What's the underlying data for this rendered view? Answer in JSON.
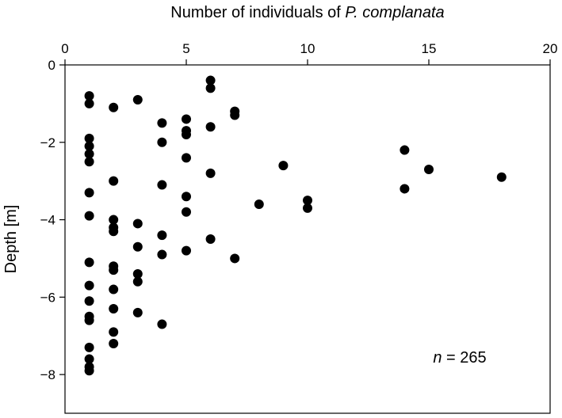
{
  "chart_data": {
    "type": "scatter",
    "title": "",
    "xlabel": {
      "prefix": "Number of individuals of ",
      "species": "P. complanata"
    },
    "ylabel": "Depth [m]",
    "xlim": [
      0,
      20
    ],
    "ylim": [
      -9,
      0
    ],
    "x_ticks": [
      0,
      5,
      10,
      15,
      20
    ],
    "y_ticks": [
      0,
      -2,
      -4,
      -6,
      -8
    ],
    "x_axis_position": "top",
    "grid": false,
    "annotation": {
      "var": "n",
      "rest": " = 265",
      "value": 265
    },
    "series": [
      {
        "points": [
          [
            1,
            -0.8
          ],
          [
            1,
            -1.0
          ],
          [
            1,
            -1.9
          ],
          [
            1,
            -2.1
          ],
          [
            1,
            -2.3
          ],
          [
            1,
            -2.5
          ],
          [
            1,
            -3.3
          ],
          [
            1,
            -3.9
          ],
          [
            1,
            -5.1
          ],
          [
            1,
            -5.7
          ],
          [
            1,
            -6.1
          ],
          [
            1,
            -6.5
          ],
          [
            1,
            -6.6
          ],
          [
            1,
            -7.3
          ],
          [
            1,
            -7.6
          ],
          [
            1,
            -7.8
          ],
          [
            1,
            -7.9
          ],
          [
            2,
            -1.1
          ],
          [
            2,
            -3.0
          ],
          [
            2,
            -4.0
          ],
          [
            2,
            -4.2
          ],
          [
            2,
            -4.3
          ],
          [
            2,
            -5.2
          ],
          [
            2,
            -5.3
          ],
          [
            2,
            -5.8
          ],
          [
            2,
            -6.3
          ],
          [
            2,
            -6.9
          ],
          [
            2,
            -7.2
          ],
          [
            3,
            -0.9
          ],
          [
            3,
            -4.1
          ],
          [
            3,
            -4.7
          ],
          [
            3,
            -5.4
          ],
          [
            3,
            -5.6
          ],
          [
            3,
            -6.4
          ],
          [
            4,
            -1.5
          ],
          [
            4,
            -2.0
          ],
          [
            4,
            -3.1
          ],
          [
            4,
            -4.4
          ],
          [
            4,
            -4.9
          ],
          [
            4,
            -6.7
          ],
          [
            5,
            -1.4
          ],
          [
            5,
            -1.7
          ],
          [
            5,
            -1.8
          ],
          [
            5,
            -2.4
          ],
          [
            5,
            -3.4
          ],
          [
            5,
            -3.8
          ],
          [
            5,
            -4.8
          ],
          [
            6,
            -0.4
          ],
          [
            6,
            -0.6
          ],
          [
            6,
            -1.6
          ],
          [
            6,
            -2.8
          ],
          [
            6,
            -4.5
          ],
          [
            7,
            -1.2
          ],
          [
            7,
            -1.3
          ],
          [
            7,
            -5.0
          ],
          [
            8,
            -3.6
          ],
          [
            9,
            -2.6
          ],
          [
            10,
            -3.5
          ],
          [
            10,
            -3.7
          ],
          [
            14,
            -2.2
          ],
          [
            14,
            -3.2
          ],
          [
            15,
            -2.7
          ],
          [
            18,
            -2.9
          ]
        ]
      }
    ]
  }
}
